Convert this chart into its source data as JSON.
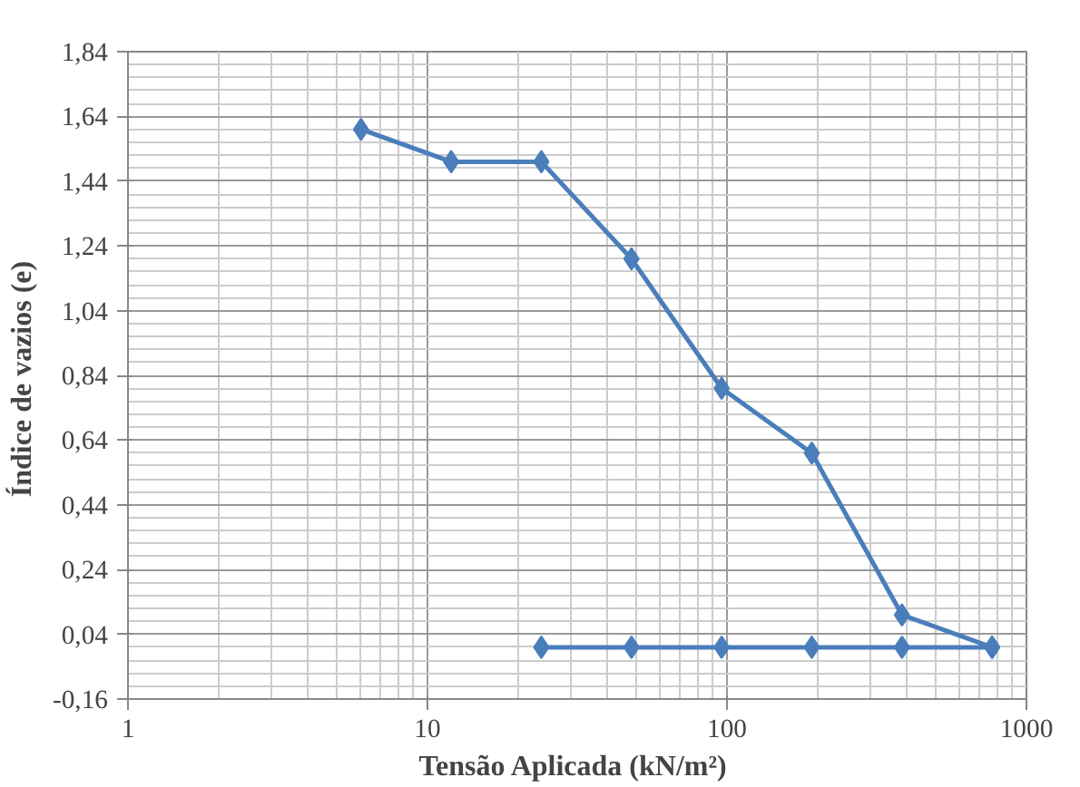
{
  "chart_data": {
    "type": "line",
    "xlabel": "Tensão Aplicada  (kN/m²)",
    "ylabel": "Índice  de vazios (e)",
    "log": "x",
    "grid": true,
    "marker": "diamond",
    "line_style": "solid",
    "xlim": [
      1,
      1000
    ],
    "xticks": [
      1,
      10,
      100,
      1000
    ],
    "ylim": [
      -0.16,
      1.84
    ],
    "yticks": [
      {
        "value": -0.16,
        "label": "-0,16"
      },
      {
        "value": 0.04,
        "label": "0,04"
      },
      {
        "value": 0.24,
        "label": "0,24"
      },
      {
        "value": 0.44,
        "label": "0,44"
      },
      {
        "value": 0.64,
        "label": "0,64"
      },
      {
        "value": 0.84,
        "label": "0,84"
      },
      {
        "value": 1.04,
        "label": "1,04"
      },
      {
        "value": 1.24,
        "label": "1,24"
      },
      {
        "value": 1.44,
        "label": "1,44"
      },
      {
        "value": 1.64,
        "label": "1,64"
      },
      {
        "value": 1.84,
        "label": "1,84"
      }
    ],
    "series": [
      {
        "color": "#4a7ebb",
        "x": [
          6,
          12,
          24,
          48,
          96,
          192,
          384,
          768
        ],
        "values": [
          1.6,
          1.5,
          1.5,
          1.2,
          0.8,
          0.6,
          0.1,
          0.0
        ]
      },
      {
        "color": "#4a7ebb",
        "x": [
          24,
          48,
          96,
          192,
          384,
          768
        ],
        "values": [
          0.0,
          0.0,
          0.0,
          0.0,
          0.0,
          0.0
        ]
      }
    ]
  }
}
